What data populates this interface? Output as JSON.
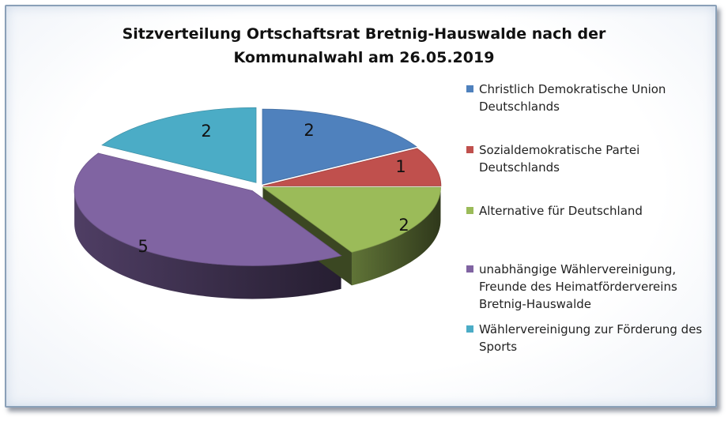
{
  "chart_data": {
    "type": "pie",
    "title_lines": [
      "Sitzverteilung Ortschaftsrat Bretnig-Hauswalde nach der",
      "Kommunalwahl am 26.05.2019"
    ],
    "slices": [
      {
        "label_lines": [
          "Christlich Demokratische Union",
          "Deutschlands"
        ],
        "value": 2,
        "color": "#4f81bd"
      },
      {
        "label_lines": [
          "Sozialdemokratische Partei",
          "Deutschlands"
        ],
        "value": 1,
        "color": "#c0504d"
      },
      {
        "label_lines": [
          "Alternative für Deutschland"
        ],
        "value": 2,
        "color": "#9bbb59"
      },
      {
        "label_lines": [
          "unabhängige Wählervereinigung,",
          "Freunde des Heimatfördervereins",
          "Bretnig-Hauswalde"
        ],
        "value": 5,
        "color": "#8064a2"
      },
      {
        "label_lines": [
          "Wählervereinigung zur Förderung des",
          "Sports"
        ],
        "value": 2,
        "color": "#4bacc6"
      }
    ],
    "legend_position": "right",
    "style": "3d-exploded"
  }
}
